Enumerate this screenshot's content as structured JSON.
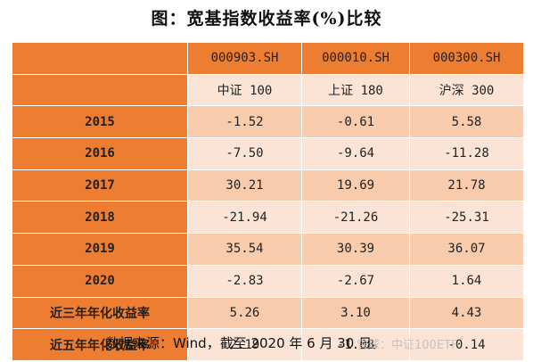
{
  "title": "图：宽基指数收益率(%)比较",
  "header": {
    "corner": "",
    "codes": [
      "000903.SH",
      "000010.SH",
      "000300.SH"
    ],
    "name_corner": "",
    "names": [
      "中证 100",
      "上证 180",
      "沪深 300"
    ]
  },
  "rows": [
    {
      "label": "2015",
      "values": [
        "-1.52",
        "-0.61",
        "5.58"
      ]
    },
    {
      "label": "2016",
      "values": [
        "-7.50",
        "-9.64",
        "-11.28"
      ]
    },
    {
      "label": "2017",
      "values": [
        "30.21",
        "19.69",
        "21.78"
      ]
    },
    {
      "label": "2018",
      "values": [
        "-21.94",
        "-21.26",
        "-25.31"
      ]
    },
    {
      "label": "2019",
      "values": [
        "35.54",
        "30.39",
        "36.07"
      ]
    },
    {
      "label": "2020",
      "values": [
        "-2.83",
        "-2.67",
        "1.64"
      ]
    },
    {
      "label": "近三年年化收益率",
      "values": [
        "5.26",
        "3.10",
        "4.43"
      ]
    },
    {
      "label": "近五年年化收益率",
      "values": [
        "2.19",
        "-1.08",
        "-0.14"
      ]
    }
  ],
  "source": "数据来源：Wind，截至 2020 年 6 月 30 日。",
  "watermark": "雪球：中证100ETF",
  "colors": {
    "header_orange": "#ed7d31",
    "row_light": "#fbe4d5",
    "row_dark": "#f8cbad"
  }
}
